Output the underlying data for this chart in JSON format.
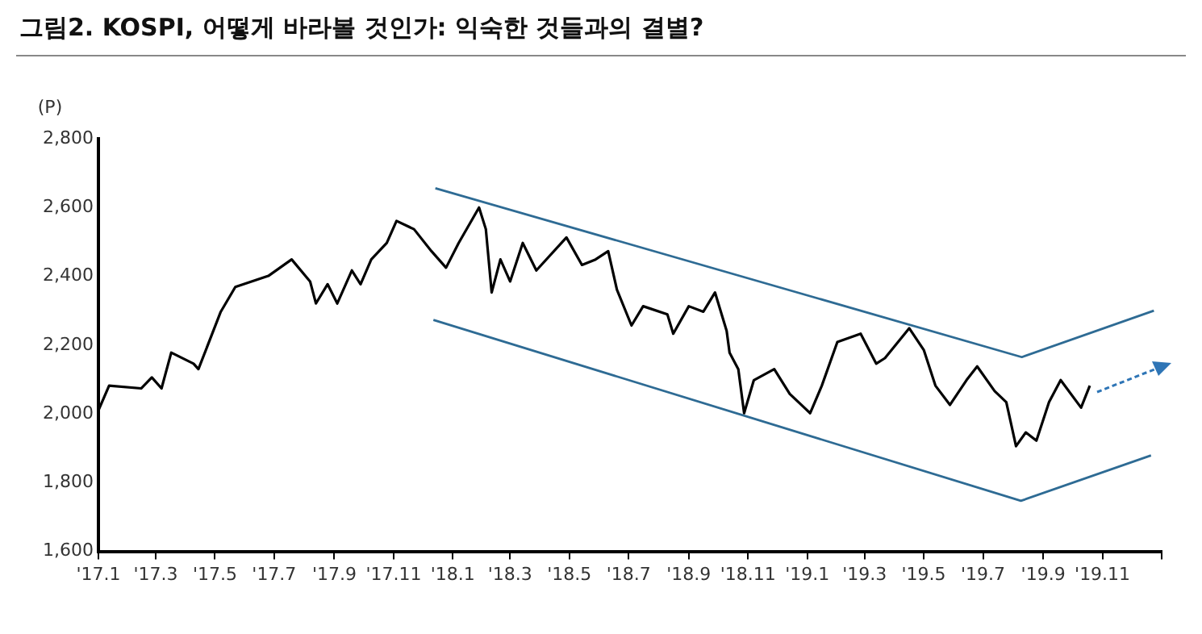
{
  "chart_data": {
    "type": "line",
    "title": "그림2. KOSPI, 어떻게 바라볼 것인가: 익숙한 것들과의 결별?",
    "ylabel": "(P)",
    "series": [
      {
        "color": "#000000",
        "x": [
          "2017-01-01",
          "2017-01-12",
          "2017-02-14",
          "2017-02-25",
          "2017-03-07",
          "2017-03-17",
          "2017-04-09",
          "2017-04-14",
          "2017-05-07",
          "2017-05-22",
          "2017-06-25",
          "2017-07-19",
          "2017-08-07",
          "2017-08-13",
          "2017-08-25",
          "2017-09-04",
          "2017-09-19",
          "2017-09-28",
          "2017-10-09",
          "2017-10-25",
          "2017-11-04",
          "2017-11-22",
          "2017-12-10",
          "2017-12-25",
          "2018-01-07",
          "2018-01-28",
          "2018-02-04",
          "2018-02-10",
          "2018-02-19",
          "2018-03-01",
          "2018-03-14",
          "2018-03-28",
          "2018-04-28",
          "2018-05-14",
          "2018-05-28",
          "2018-06-10",
          "2018-06-19",
          "2018-07-04",
          "2018-07-16",
          "2018-08-10",
          "2018-08-16",
          "2018-09-01",
          "2018-09-16",
          "2018-09-28",
          "2018-10-10",
          "2018-10-13",
          "2018-10-22",
          "2018-10-28",
          "2018-11-07",
          "2018-11-28",
          "2018-12-14",
          "2019-01-04",
          "2019-01-16",
          "2019-02-01",
          "2019-02-25",
          "2019-03-13",
          "2019-03-22",
          "2019-04-16",
          "2019-05-01",
          "2019-05-13",
          "2019-05-28",
          "2019-06-14",
          "2019-06-25",
          "2019-07-13",
          "2019-07-25",
          "2019-08-04",
          "2019-08-14",
          "2019-08-25",
          "2019-09-07",
          "2019-09-19",
          "2019-10-10",
          "2019-10-19"
        ],
        "values": [
          2010,
          2082,
          2074,
          2106,
          2074,
          2178,
          2146,
          2130,
          2297,
          2369,
          2401,
          2449,
          2385,
          2321,
          2377,
          2321,
          2417,
          2377,
          2449,
          2497,
          2561,
          2537,
          2473,
          2425,
          2497,
          2600,
          2537,
          2353,
          2449,
          2385,
          2497,
          2417,
          2513,
          2433,
          2449,
          2473,
          2361,
          2257,
          2313,
          2289,
          2233,
          2313,
          2297,
          2353,
          2241,
          2178,
          2130,
          2002,
          2098,
          2130,
          2058,
          2002,
          2082,
          2209,
          2233,
          2146,
          2162,
          2249,
          2186,
          2082,
          2026,
          2098,
          2138,
          2066,
          2034,
          1906,
          1946,
          1922,
          2034,
          2098,
          2018,
          2082
        ]
      },
      {
        "type": "line",
        "color": "#2e6b94",
        "x": [
          "2017-12-14",
          "2019-08-10",
          "2019-12-24"
        ],
        "values": [
          2656,
          2165,
          2300
        ]
      },
      {
        "type": "line",
        "color": "#2e6b94",
        "x": [
          "2017-12-12",
          "2019-08-09",
          "2019-12-21"
        ],
        "values": [
          2273,
          1747,
          1879
        ]
      }
    ],
    "xlim": [
      "2017-01",
      "2020-01"
    ],
    "xticks": [
      {
        "value": "2017-01",
        "label": "'17.1"
      },
      {
        "value": "2017-03",
        "label": "'17.3"
      },
      {
        "value": "2017-05",
        "label": "'17.5"
      },
      {
        "value": "2017-07",
        "label": "'17.7"
      },
      {
        "value": "2017-09",
        "label": "'17.9"
      },
      {
        "value": "2017-11",
        "label": "'17.11"
      },
      {
        "value": "2018-01",
        "label": "'18.1"
      },
      {
        "value": "2018-03",
        "label": "'18.3"
      },
      {
        "value": "2018-05",
        "label": "'18.5"
      },
      {
        "value": "2018-07",
        "label": "'18.7"
      },
      {
        "value": "2018-09",
        "label": "'18.9"
      },
      {
        "value": "2018-11",
        "label": "'18.11"
      },
      {
        "value": "2019-01",
        "label": "'19.1"
      },
      {
        "value": "2019-03",
        "label": "'19.3"
      },
      {
        "value": "2019-05",
        "label": "'19.5"
      },
      {
        "value": "2019-07",
        "label": "'19.7"
      },
      {
        "value": "2019-09",
        "label": "'19.9"
      },
      {
        "value": "2019-11",
        "label": "'19.11"
      },
      {
        "value": "2020-01",
        "label": null
      }
    ],
    "ylim": [
      1600,
      2800
    ],
    "yticks": [
      {
        "value": 1600,
        "label": "1,600"
      },
      {
        "value": 1800,
        "label": "1,800"
      },
      {
        "value": 2000,
        "label": "2,000"
      },
      {
        "value": 2200,
        "label": "2,200"
      },
      {
        "value": 2400,
        "label": "2,400"
      },
      {
        "value": 2600,
        "label": "2,600"
      },
      {
        "value": 2800,
        "label": "2,800"
      }
    ],
    "grid": false,
    "legend": false,
    "marker": "none",
    "line_style": "solid"
  }
}
